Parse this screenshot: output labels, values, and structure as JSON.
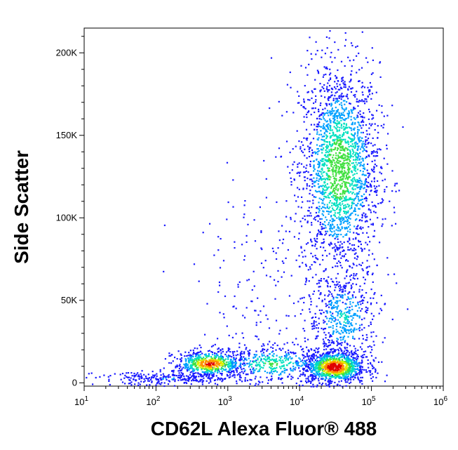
{
  "chart_data": {
    "type": "scatter",
    "subtype": "density",
    "title": "",
    "xlabel": "CD62L Alexa Fluor® 488",
    "ylabel": "Side Scatter",
    "x_scale": "log",
    "y_scale": "linear",
    "xlim": [
      10,
      1000000
    ],
    "ylim": [
      -2000,
      215000
    ],
    "x_ticks": [
      {
        "value": 10,
        "base": "10",
        "exp": "1"
      },
      {
        "value": 100,
        "base": "10",
        "exp": "2"
      },
      {
        "value": 1000,
        "base": "10",
        "exp": "3"
      },
      {
        "value": 10000,
        "base": "10",
        "exp": "4"
      },
      {
        "value": 100000,
        "base": "10",
        "exp": "5"
      },
      {
        "value": 1000000,
        "base": "10",
        "exp": "6"
      }
    ],
    "y_ticks": [
      {
        "value": 0,
        "label": "0"
      },
      {
        "value": 50000,
        "label": "50K"
      },
      {
        "value": 100000,
        "label": "100K"
      },
      {
        "value": 150000,
        "label": "150K"
      },
      {
        "value": 200000,
        "label": "200K"
      }
    ],
    "grid": false,
    "legend": "none",
    "colormap": [
      "#1a1aff",
      "#00a0ff",
      "#00e0c0",
      "#40e040",
      "#e0f000",
      "#ff9000",
      "#e00000"
    ],
    "populations": [
      {
        "x": 35000,
        "y": 130000,
        "x_spread": 0.28,
        "y_spread": 32000,
        "weight": 0.42,
        "peak": 0.55
      },
      {
        "x": 30000,
        "y": 10000,
        "x_spread": 0.22,
        "y_spread": 5000,
        "weight": 0.2,
        "peak": 1.0
      },
      {
        "x": 550,
        "y": 12000,
        "x_spread": 0.25,
        "y_spread": 4000,
        "weight": 0.12,
        "peak": 0.9
      },
      {
        "x": 4000,
        "y": 12000,
        "x_spread": 0.4,
        "y_spread": 6000,
        "weight": 0.08,
        "peak": 0.45
      },
      {
        "x": 40000,
        "y": 40000,
        "x_spread": 0.25,
        "y_spread": 15000,
        "weight": 0.1,
        "peak": 0.3
      },
      {
        "x": 150,
        "y": 3000,
        "x_spread": 0.5,
        "y_spread": 2000,
        "weight": 0.05,
        "peak": 0.15
      },
      {
        "x": 3000,
        "y": 60000,
        "x_spread": 0.45,
        "y_spread": 30000,
        "weight": 0.03,
        "peak": 0.1
      }
    ]
  }
}
